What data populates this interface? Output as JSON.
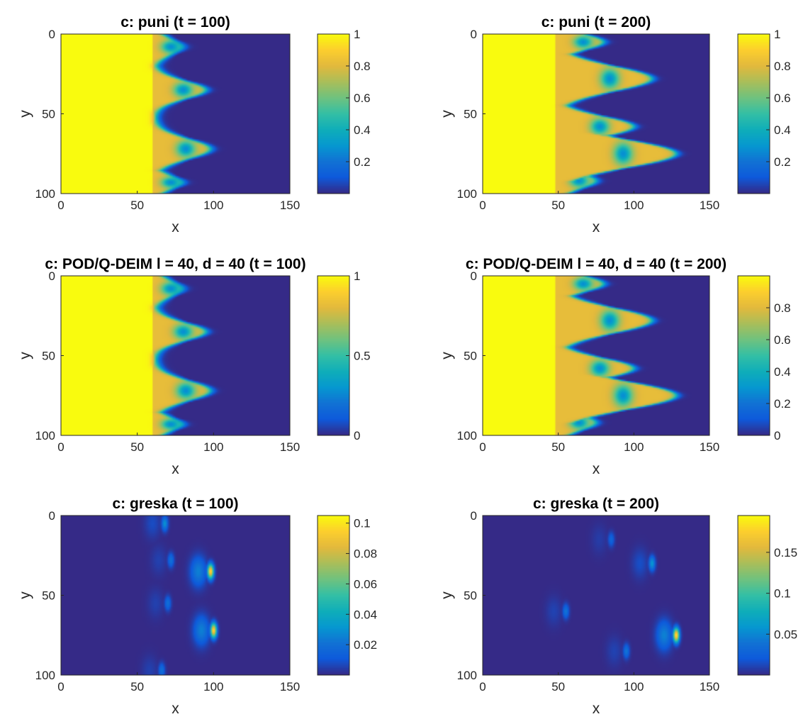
{
  "figure": {
    "panels": [
      {
        "title": "c: puni (t = 100)",
        "xlabel": "x",
        "ylabel": "y",
        "xticks": [
          "0",
          "50",
          "100",
          "150"
        ],
        "yticks": [
          "0",
          "50",
          "100"
        ],
        "cb_ticks": [
          "0.2",
          "0.4",
          "0.6",
          "0.8",
          "1"
        ]
      },
      {
        "title": "c: puni (t = 200)",
        "xlabel": "x",
        "ylabel": "y",
        "xticks": [
          "0",
          "50",
          "100",
          "150"
        ],
        "yticks": [
          "0",
          "50",
          "100"
        ],
        "cb_ticks": [
          "0.2",
          "0.4",
          "0.6",
          "0.8",
          "1"
        ]
      },
      {
        "title": "c: POD/Q-DEIM l = 40, d = 40 (t = 100)",
        "xlabel": "x",
        "ylabel": "y",
        "xticks": [
          "0",
          "50",
          "100",
          "150"
        ],
        "yticks": [
          "0",
          "50",
          "100"
        ],
        "cb_ticks": [
          "0",
          "0.5",
          "1"
        ]
      },
      {
        "title": "c: POD/Q-DEIM l = 40, d = 40 (t = 200)",
        "xlabel": "x",
        "ylabel": "y",
        "xticks": [
          "0",
          "50",
          "100",
          "150"
        ],
        "yticks": [
          "0",
          "50",
          "100"
        ],
        "cb_ticks": [
          "0",
          "0.2",
          "0.4",
          "0.6",
          "0.8"
        ]
      },
      {
        "title": "c: greska (t = 100)",
        "xlabel": "x",
        "ylabel": "y",
        "xticks": [
          "0",
          "50",
          "100",
          "150"
        ],
        "yticks": [
          "0",
          "50",
          "100"
        ],
        "cb_ticks": [
          "0.02",
          "0.04",
          "0.06",
          "0.08",
          "0.1"
        ]
      },
      {
        "title": "c: greska (t = 200)",
        "xlabel": "x",
        "ylabel": "y",
        "xticks": [
          "0",
          "50",
          "100",
          "150"
        ],
        "yticks": [
          "0",
          "50",
          "100"
        ],
        "cb_ticks": [
          "0.05",
          "0.1",
          "0.15"
        ]
      }
    ]
  },
  "chart_data": [
    {
      "type": "heatmap",
      "title": "c: puni (t = 100)",
      "xlabel": "x",
      "ylabel": "y",
      "xlim": [
        0,
        150
      ],
      "ylim": [
        0,
        100
      ],
      "y_direction": "top-to-bottom",
      "colormap": "parula",
      "clim": [
        0,
        1
      ],
      "colorbar_ticks": [
        0.2,
        0.4,
        0.6,
        0.8,
        1
      ],
      "front": {
        "base_x": 62,
        "fingers": [
          {
            "y": 8,
            "x_tip": 80,
            "width": 7
          },
          {
            "y": 35,
            "x_tip": 95,
            "width": 8
          },
          {
            "y": 72,
            "x_tip": 98,
            "width": 9
          },
          {
            "y": 93,
            "x_tip": 80,
            "width": 6
          }
        ]
      }
    },
    {
      "type": "heatmap",
      "title": "c: puni (t = 200)",
      "xlabel": "x",
      "ylabel": "y",
      "xlim": [
        0,
        150
      ],
      "ylim": [
        0,
        100
      ],
      "y_direction": "top-to-bottom",
      "colormap": "parula",
      "clim": [
        0,
        1
      ],
      "colorbar_ticks": [
        0.2,
        0.4,
        0.6,
        0.8,
        1
      ],
      "front": {
        "base_x": 50,
        "fingers": [
          {
            "y": 5,
            "x_tip": 80,
            "width": 7
          },
          {
            "y": 28,
            "x_tip": 112,
            "width": 11
          },
          {
            "y": 58,
            "x_tip": 100,
            "width": 9
          },
          {
            "y": 75,
            "x_tip": 128,
            "width": 12
          },
          {
            "y": 92,
            "x_tip": 75,
            "width": 7
          }
        ]
      }
    },
    {
      "type": "heatmap",
      "title": "c: POD/Q-DEIM l = 40, d = 40 (t = 100)",
      "xlabel": "x",
      "ylabel": "y",
      "xlim": [
        0,
        150
      ],
      "ylim": [
        0,
        100
      ],
      "y_direction": "top-to-bottom",
      "colormap": "parula",
      "clim": [
        0,
        1
      ],
      "colorbar_ticks": [
        0,
        0.5,
        1
      ],
      "front": {
        "base_x": 62,
        "fingers": [
          {
            "y": 8,
            "x_tip": 80,
            "width": 7
          },
          {
            "y": 35,
            "x_tip": 95,
            "width": 8
          },
          {
            "y": 72,
            "x_tip": 98,
            "width": 9
          },
          {
            "y": 93,
            "x_tip": 80,
            "width": 6
          }
        ]
      }
    },
    {
      "type": "heatmap",
      "title": "c: POD/Q-DEIM l = 40, d = 40 (t = 200)",
      "xlabel": "x",
      "ylabel": "y",
      "xlim": [
        0,
        150
      ],
      "ylim": [
        0,
        100
      ],
      "y_direction": "top-to-bottom",
      "colormap": "parula",
      "clim": [
        0,
        1
      ],
      "colorbar_ticks": [
        0,
        0.2,
        0.4,
        0.6,
        0.8
      ],
      "front": {
        "base_x": 50,
        "fingers": [
          {
            "y": 5,
            "x_tip": 80,
            "width": 7
          },
          {
            "y": 28,
            "x_tip": 112,
            "width": 11
          },
          {
            "y": 58,
            "x_tip": 100,
            "width": 9
          },
          {
            "y": 75,
            "x_tip": 128,
            "width": 12
          },
          {
            "y": 92,
            "x_tip": 75,
            "width": 7
          }
        ]
      }
    },
    {
      "type": "heatmap",
      "title": "c: greska (t = 100)",
      "xlabel": "x",
      "ylabel": "y",
      "xlim": [
        0,
        150
      ],
      "ylim": [
        0,
        100
      ],
      "y_direction": "top-to-bottom",
      "colormap": "parula",
      "clim": [
        0,
        0.105
      ],
      "colorbar_ticks": [
        0.02,
        0.04,
        0.06,
        0.08,
        0.1
      ],
      "hotspots": [
        {
          "x": 98,
          "y": 35,
          "value": 0.1
        },
        {
          "x": 100,
          "y": 72,
          "value": 0.1
        },
        {
          "x": 68,
          "y": 5,
          "value": 0.03
        },
        {
          "x": 72,
          "y": 28,
          "value": 0.02
        },
        {
          "x": 70,
          "y": 55,
          "value": 0.02
        },
        {
          "x": 66,
          "y": 97,
          "value": 0.02
        }
      ]
    },
    {
      "type": "heatmap",
      "title": "c: greska (t = 200)",
      "xlabel": "x",
      "ylabel": "y",
      "xlim": [
        0,
        150
      ],
      "ylim": [
        0,
        100
      ],
      "y_direction": "top-to-bottom",
      "colormap": "parula",
      "clim": [
        0,
        0.195
      ],
      "colorbar_ticks": [
        0.05,
        0.1,
        0.15
      ],
      "hotspots": [
        {
          "x": 128,
          "y": 75,
          "value": 0.19
        },
        {
          "x": 112,
          "y": 30,
          "value": 0.06
        },
        {
          "x": 55,
          "y": 60,
          "value": 0.04
        },
        {
          "x": 85,
          "y": 15,
          "value": 0.03
        },
        {
          "x": 95,
          "y": 85,
          "value": 0.04
        }
      ]
    }
  ]
}
